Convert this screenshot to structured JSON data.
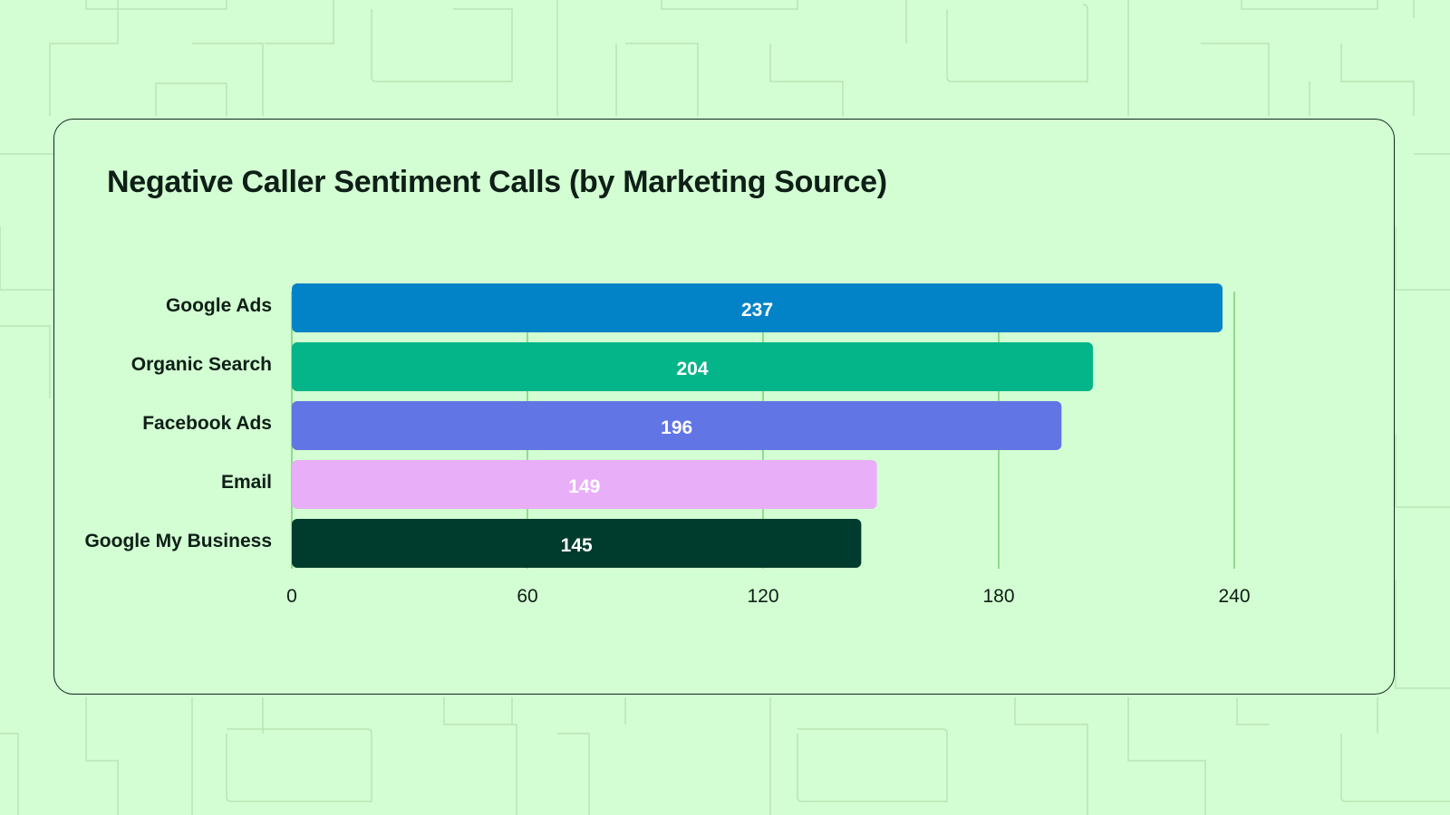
{
  "chart_data": {
    "type": "bar",
    "orientation": "horizontal",
    "title": "Negative Caller Sentiment Calls (by Marketing Source)",
    "xlabel": "",
    "ylabel": "",
    "categories": [
      "Google Ads",
      "Organic Search",
      "Facebook Ads",
      "Email",
      "Google My Business"
    ],
    "values": [
      237,
      204,
      196,
      149,
      145
    ],
    "value_labels": [
      "237",
      "204",
      "196",
      "149",
      "145"
    ],
    "bar_colors": [
      "#0383c7",
      "#04b589",
      "#6175e4",
      "#e8aff8",
      "#003c2d"
    ],
    "value_label_colors": [
      "#ffffff",
      "#ffffff",
      "#ffffff",
      "#ffffff",
      "#ffffff"
    ],
    "xlim": [
      0,
      240
    ],
    "xticks": [
      0,
      60,
      120,
      180,
      240
    ],
    "xtick_labels": [
      "0",
      "60",
      "120",
      "180",
      "240"
    ],
    "grid": true,
    "legend": "none"
  },
  "colors": {
    "background": "#d3fdd2",
    "pattern_line": "#b7e6b6",
    "card_border": "#0c2a1e",
    "gridline": "#8fdc8e",
    "text": "#0d1f17"
  }
}
